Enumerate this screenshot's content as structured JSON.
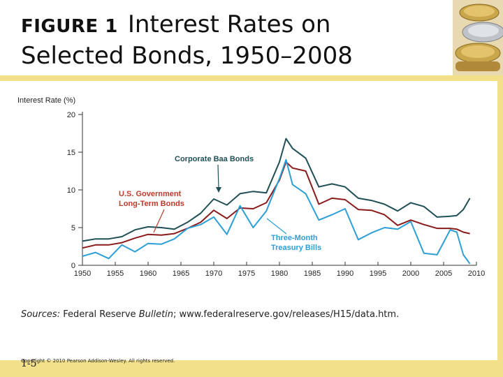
{
  "slide": {
    "title_fig": "FIGURE 1",
    "title_line1": "Interest Rates on",
    "title_line2": "Selected Bonds, 1950–2008",
    "sources_prefix": "Sources:",
    "sources_mid": "Federal Reserve",
    "sources_italic": "Bulletin",
    "sources_rest": "; www.federalreserve.gov/releases/H15/data.htm.",
    "copyright": "Copyright © 2010 Pearson Addison-Wesley. All rights reserved.",
    "page_number": "1-5"
  },
  "colors": {
    "baa": "#1f4f55",
    "govt": "#8b1a1a",
    "tbill": "#2b9fd6",
    "annotation": "#c0392b",
    "annotation_blue": "#2b9fd6",
    "annotation_dark": "#1f4f55",
    "accent_yellow": "#f2e08a"
  },
  "chart_data": {
    "type": "line",
    "ylabel": "Interest Rate (%)",
    "xlim": [
      1950,
      2010
    ],
    "ylim": [
      0,
      20
    ],
    "xticks": [
      "1950",
      "1955",
      "1960",
      "1965",
      "1970",
      "1975",
      "1980",
      "1985",
      "1990",
      "1995",
      "2000",
      "2005",
      "2010"
    ],
    "yticks": [
      "0",
      "5",
      "10",
      "15",
      "20"
    ],
    "annotations": {
      "baa": "Corporate Baa Bonds",
      "govt_line1": "U.S. Government",
      "govt_line2": "Long-Term Bonds",
      "tbill_line1": "Three-Month",
      "tbill_line2": "Treasury Bills"
    },
    "x": [
      1950,
      1952,
      1954,
      1956,
      1958,
      1960,
      1962,
      1964,
      1966,
      1968,
      1970,
      1972,
      1974,
      1976,
      1978,
      1980,
      1981,
      1982,
      1984,
      1986,
      1988,
      1990,
      1992,
      1994,
      1996,
      1998,
      2000,
      2002,
      2004,
      2006,
      2007,
      2008,
      2009
    ],
    "series": [
      {
        "name": "Corporate Baa Bonds",
        "values": [
          3.2,
          3.5,
          3.5,
          3.8,
          4.7,
          5.1,
          5.0,
          4.8,
          5.7,
          6.9,
          8.8,
          8.0,
          9.5,
          9.8,
          9.6,
          13.7,
          16.8,
          15.5,
          14.2,
          10.4,
          10.8,
          10.4,
          8.9,
          8.6,
          8.1,
          7.2,
          8.3,
          7.8,
          6.4,
          6.5,
          6.6,
          7.4,
          8.9
        ]
      },
      {
        "name": "U.S. Government Long-Term Bonds",
        "values": [
          2.3,
          2.7,
          2.7,
          3.0,
          3.6,
          4.1,
          4.0,
          4.2,
          4.9,
          5.7,
          7.3,
          6.2,
          7.6,
          7.5,
          8.3,
          11.3,
          13.7,
          12.9,
          12.5,
          8.1,
          8.9,
          8.7,
          7.4,
          7.3,
          6.7,
          5.3,
          6.0,
          5.4,
          4.9,
          4.9,
          4.8,
          4.4,
          4.2
        ]
      },
      {
        "name": "Three-Month Treasury Bills",
        "values": [
          1.2,
          1.7,
          0.9,
          2.7,
          1.8,
          2.9,
          2.8,
          3.5,
          4.9,
          5.4,
          6.4,
          4.1,
          7.9,
          5.0,
          7.2,
          11.5,
          14.0,
          10.7,
          9.5,
          6.0,
          6.7,
          7.5,
          3.4,
          4.3,
          5.0,
          4.8,
          5.8,
          1.6,
          1.4,
          4.7,
          4.4,
          1.4,
          0.2
        ]
      }
    ]
  }
}
